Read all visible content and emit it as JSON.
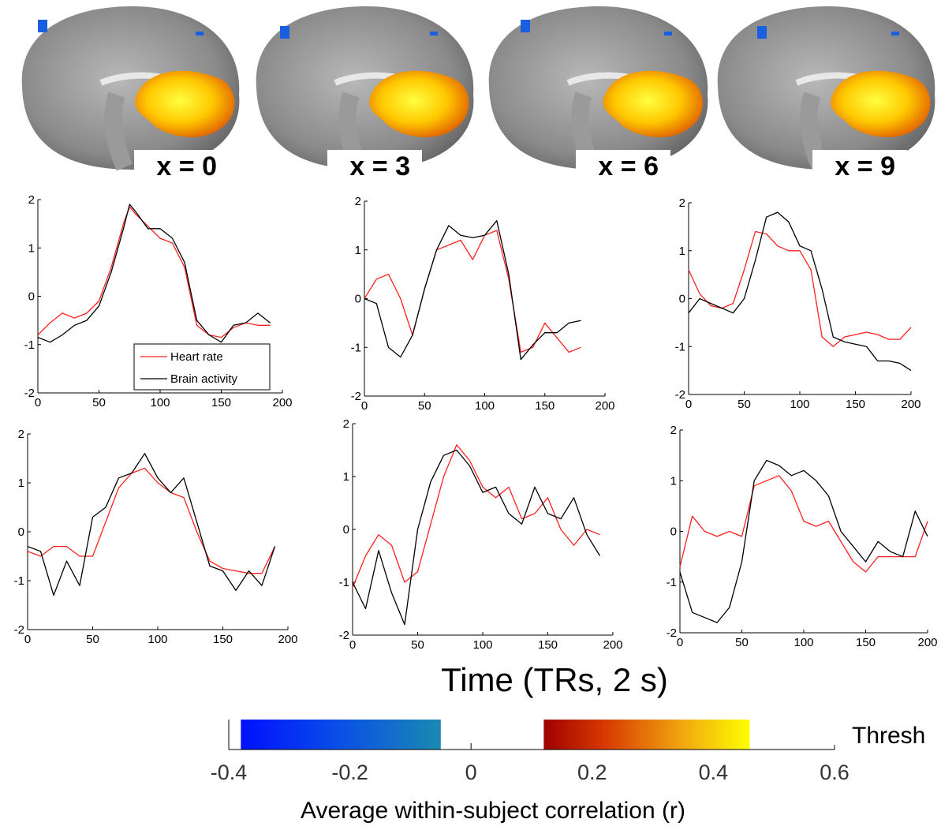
{
  "brain_slices": [
    {
      "label": "x = 0"
    },
    {
      "label": "x = 3"
    },
    {
      "label": "x = 6"
    },
    {
      "label": "x = 9"
    }
  ],
  "colorbar": {
    "label": "Average within-subject correlation (r)",
    "ticks": [
      "-0.4",
      "-0.2",
      "0",
      "0.2",
      "0.4",
      "0.6"
    ],
    "range": [
      -0.4,
      0.6
    ],
    "negative_band": [
      -0.38,
      -0.05
    ],
    "positive_band": [
      0.12,
      0.46
    ],
    "threshold_text": "Thresh"
  },
  "shared_xlabel": "Time (TRs, 2 s)",
  "legend": {
    "items": [
      {
        "name": "Heart rate",
        "color": "#ff2020"
      },
      {
        "name": "Brain activity",
        "color": "#000000"
      }
    ]
  },
  "chart_data": [
    {
      "type": "line",
      "xlim": [
        0,
        200
      ],
      "ylim": [
        -2,
        2
      ],
      "xticks": [
        "0",
        "50",
        "100",
        "150",
        "200"
      ],
      "yticks": [
        "2",
        "1",
        "0",
        "-1",
        "-2"
      ],
      "series": [
        {
          "name": "Heart rate",
          "color": "#ff2020",
          "x": [
            0,
            10,
            20,
            30,
            40,
            50,
            60,
            70,
            75,
            80,
            90,
            100,
            110,
            120,
            130,
            140,
            150,
            160,
            170,
            180,
            190
          ],
          "y": [
            -0.8,
            -0.55,
            -0.35,
            -0.45,
            -0.35,
            -0.1,
            0.6,
            1.5,
            1.85,
            1.7,
            1.45,
            1.2,
            1.1,
            0.6,
            -0.6,
            -0.8,
            -0.85,
            -0.65,
            -0.55,
            -0.6,
            -0.6
          ]
        },
        {
          "name": "Brain activity",
          "color": "#000000",
          "x": [
            0,
            10,
            20,
            30,
            40,
            50,
            60,
            70,
            75,
            80,
            90,
            100,
            110,
            120,
            130,
            140,
            150,
            160,
            170,
            180,
            190
          ],
          "y": [
            -0.85,
            -0.95,
            -0.8,
            -0.6,
            -0.5,
            -0.2,
            0.5,
            1.4,
            1.9,
            1.75,
            1.4,
            1.4,
            1.2,
            0.7,
            -0.5,
            -0.8,
            -0.95,
            -0.6,
            -0.55,
            -0.35,
            -0.55
          ]
        }
      ]
    },
    {
      "type": "line",
      "xlim": [
        0,
        200
      ],
      "ylim": [
        -2,
        2
      ],
      "xticks": [
        "0",
        "50",
        "100",
        "150",
        "200"
      ],
      "yticks": [
        "2",
        "1",
        "0",
        "-1",
        "-2"
      ],
      "series": [
        {
          "name": "Heart rate",
          "color": "#ff2020",
          "x": [
            0,
            10,
            20,
            30,
            40,
            50,
            60,
            70,
            80,
            90,
            100,
            110,
            120,
            130,
            140,
            150,
            160,
            170,
            180
          ],
          "y": [
            0,
            0.4,
            0.5,
            0.0,
            -0.75,
            0.2,
            1.0,
            1.1,
            1.2,
            0.8,
            1.3,
            1.4,
            0.4,
            -1.1,
            -1.0,
            -0.5,
            -0.8,
            -1.1,
            -1.0
          ]
        },
        {
          "name": "Brain activity",
          "color": "#000000",
          "x": [
            0,
            10,
            20,
            30,
            40,
            50,
            60,
            70,
            80,
            90,
            100,
            110,
            120,
            130,
            140,
            150,
            160,
            170,
            180
          ],
          "y": [
            0,
            -0.1,
            -1.0,
            -1.2,
            -0.75,
            0.2,
            1.0,
            1.5,
            1.3,
            1.25,
            1.3,
            1.6,
            0.5,
            -1.25,
            -0.95,
            -0.7,
            -0.7,
            -0.5,
            -0.45
          ]
        }
      ]
    },
    {
      "type": "line",
      "xlim": [
        0,
        200
      ],
      "ylim": [
        -2,
        2
      ],
      "xticks": [
        "0",
        "50",
        "100",
        "150",
        "200"
      ],
      "yticks": [
        "2",
        "1",
        "0",
        "-1",
        "-2"
      ],
      "series": [
        {
          "name": "Heart rate",
          "color": "#ff2020",
          "x": [
            0,
            10,
            20,
            30,
            40,
            50,
            60,
            70,
            80,
            90,
            100,
            110,
            120,
            130,
            140,
            150,
            160,
            170,
            180,
            190,
            200
          ],
          "y": [
            0.6,
            0.1,
            -0.15,
            -0.2,
            -0.1,
            0.6,
            1.4,
            1.35,
            1.1,
            1.0,
            1.0,
            0.6,
            -0.8,
            -1.0,
            -0.8,
            -0.75,
            -0.7,
            -0.75,
            -0.85,
            -0.85,
            -0.6
          ]
        },
        {
          "name": "Brain activity",
          "color": "#000000",
          "x": [
            0,
            10,
            20,
            30,
            40,
            50,
            60,
            70,
            80,
            90,
            100,
            110,
            120,
            130,
            140,
            150,
            160,
            170,
            180,
            190,
            200
          ],
          "y": [
            -0.3,
            0.0,
            -0.1,
            -0.2,
            -0.3,
            0.0,
            0.8,
            1.7,
            1.8,
            1.6,
            1.1,
            1.0,
            0.2,
            -0.8,
            -0.9,
            -0.95,
            -1.0,
            -1.3,
            -1.3,
            -1.35,
            -1.5
          ]
        }
      ]
    },
    {
      "type": "line",
      "xlim": [
        0,
        200
      ],
      "ylim": [
        -2,
        2
      ],
      "xticks": [
        "0",
        "50",
        "100",
        "150",
        "200"
      ],
      "yticks": [
        "2",
        "1",
        "0",
        "-1",
        "-2"
      ],
      "series": [
        {
          "name": "Heart rate",
          "color": "#ff2020",
          "x": [
            0,
            10,
            20,
            30,
            40,
            50,
            60,
            70,
            80,
            90,
            100,
            110,
            120,
            130,
            140,
            150,
            160,
            170,
            180,
            190
          ],
          "y": [
            -0.4,
            -0.5,
            -0.3,
            -0.3,
            -0.5,
            -0.5,
            0.2,
            0.9,
            1.2,
            1.3,
            1.0,
            0.8,
            0.7,
            0.0,
            -0.6,
            -0.75,
            -0.8,
            -0.85,
            -0.85,
            -0.3
          ]
        },
        {
          "name": "Brain activity",
          "color": "#000000",
          "x": [
            0,
            10,
            20,
            30,
            40,
            50,
            60,
            70,
            80,
            90,
            100,
            110,
            120,
            130,
            140,
            150,
            160,
            170,
            180,
            190
          ],
          "y": [
            -0.3,
            -0.4,
            -1.3,
            -0.6,
            -1.1,
            0.3,
            0.5,
            1.1,
            1.2,
            1.6,
            1.1,
            0.8,
            1.1,
            0.2,
            -0.7,
            -0.8,
            -1.2,
            -0.8,
            -1.1,
            -0.3
          ]
        }
      ]
    },
    {
      "type": "line",
      "xlim": [
        0,
        200
      ],
      "ylim": [
        -2,
        2
      ],
      "xticks": [
        "0",
        "50",
        "100",
        "150",
        "200"
      ],
      "yticks": [
        "2",
        "1",
        "0",
        "-1",
        "-2"
      ],
      "series": [
        {
          "name": "Heart rate",
          "color": "#ff2020",
          "x": [
            0,
            10,
            20,
            30,
            40,
            50,
            60,
            70,
            80,
            90,
            100,
            110,
            120,
            130,
            140,
            150,
            160,
            170,
            180,
            190
          ],
          "y": [
            -1.1,
            -0.5,
            -0.1,
            -0.3,
            -1.0,
            -0.8,
            0.1,
            1.0,
            1.6,
            1.3,
            0.8,
            0.6,
            0.8,
            0.2,
            0.3,
            0.6,
            0.0,
            -0.3,
            0.0,
            -0.1
          ]
        },
        {
          "name": "Brain activity",
          "color": "#000000",
          "x": [
            0,
            10,
            20,
            30,
            40,
            50,
            60,
            70,
            80,
            90,
            100,
            110,
            120,
            130,
            140,
            150,
            160,
            170,
            180,
            190
          ],
          "y": [
            -1.0,
            -1.5,
            -0.4,
            -1.2,
            -1.8,
            0.0,
            0.9,
            1.4,
            1.5,
            1.2,
            0.7,
            0.8,
            0.3,
            0.1,
            0.8,
            0.3,
            0.2,
            0.6,
            -0.1,
            -0.5
          ]
        }
      ]
    },
    {
      "type": "line",
      "xlim": [
        0,
        200
      ],
      "ylim": [
        -2,
        2
      ],
      "xticks": [
        "0",
        "50",
        "100",
        "150",
        "200"
      ],
      "yticks": [
        "2",
        "1",
        "0",
        "-1",
        "-2"
      ],
      "series": [
        {
          "name": "Heart rate",
          "color": "#ff2020",
          "x": [
            0,
            10,
            20,
            30,
            40,
            50,
            60,
            70,
            80,
            90,
            100,
            110,
            120,
            130,
            140,
            150,
            160,
            170,
            180,
            190,
            200
          ],
          "y": [
            -0.7,
            0.3,
            0.0,
            -0.1,
            0.0,
            -0.1,
            0.9,
            1.0,
            1.1,
            0.8,
            0.2,
            0.1,
            0.2,
            -0.2,
            -0.6,
            -0.8,
            -0.5,
            -0.5,
            -0.5,
            -0.5,
            0.2
          ]
        },
        {
          "name": "Brain activity",
          "color": "#000000",
          "x": [
            0,
            10,
            20,
            30,
            40,
            50,
            60,
            70,
            80,
            90,
            100,
            110,
            120,
            130,
            140,
            150,
            160,
            170,
            180,
            190,
            200
          ],
          "y": [
            -0.8,
            -1.6,
            -1.7,
            -1.8,
            -1.5,
            -0.6,
            1.0,
            1.4,
            1.3,
            1.1,
            1.2,
            1.0,
            0.7,
            0.0,
            -0.3,
            -0.6,
            -0.2,
            -0.4,
            -0.5,
            0.4,
            -0.1
          ]
        }
      ]
    }
  ]
}
